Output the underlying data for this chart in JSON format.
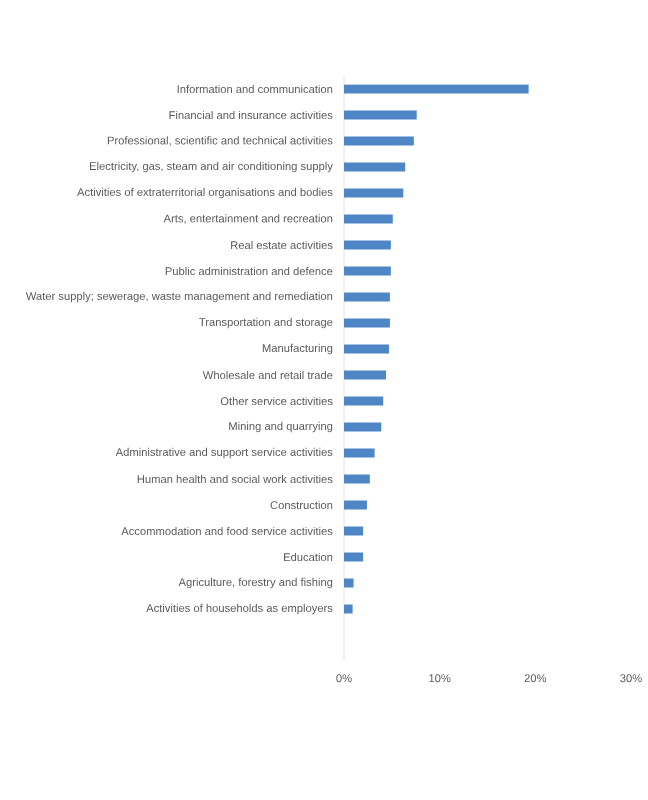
{
  "chart_data": {
    "type": "bar",
    "orientation": "horizontal",
    "categories": [
      "Information and communication",
      "Financial and insurance activities",
      "Professional, scientific and technical activities",
      "Electricity, gas, steam and air conditioning supply",
      "Activities of extraterritorial organisations and bodies",
      "Arts, entertainment and recreation",
      "Real estate activities",
      "Public administration and defence",
      "Water supply; sewerage, waste management and remediation",
      "Transportation and storage",
      "Manufacturing",
      "Wholesale and retail trade",
      "Other service activities",
      "Mining and quarrying",
      "Administrative and support service activities",
      "Human health and social work activities",
      "Construction",
      "Accommodation and food service activities",
      "Education",
      "Agriculture, forestry and fishing",
      "Activities of households as employers"
    ],
    "values": [
      19.3,
      7.6,
      7.3,
      6.4,
      6.2,
      5.1,
      4.9,
      4.9,
      4.8,
      4.8,
      4.7,
      4.4,
      4.1,
      3.9,
      3.2,
      2.7,
      2.4,
      2.0,
      2.0,
      1.0,
      0.9
    ],
    "color": "#4f86c6",
    "xlim": [
      0,
      30
    ],
    "xticks": [
      {
        "value": 0,
        "label": "0%"
      },
      {
        "value": 10,
        "label": "10%"
      },
      {
        "value": 20,
        "label": "20%"
      },
      {
        "value": 30,
        "label": "30%"
      }
    ]
  }
}
